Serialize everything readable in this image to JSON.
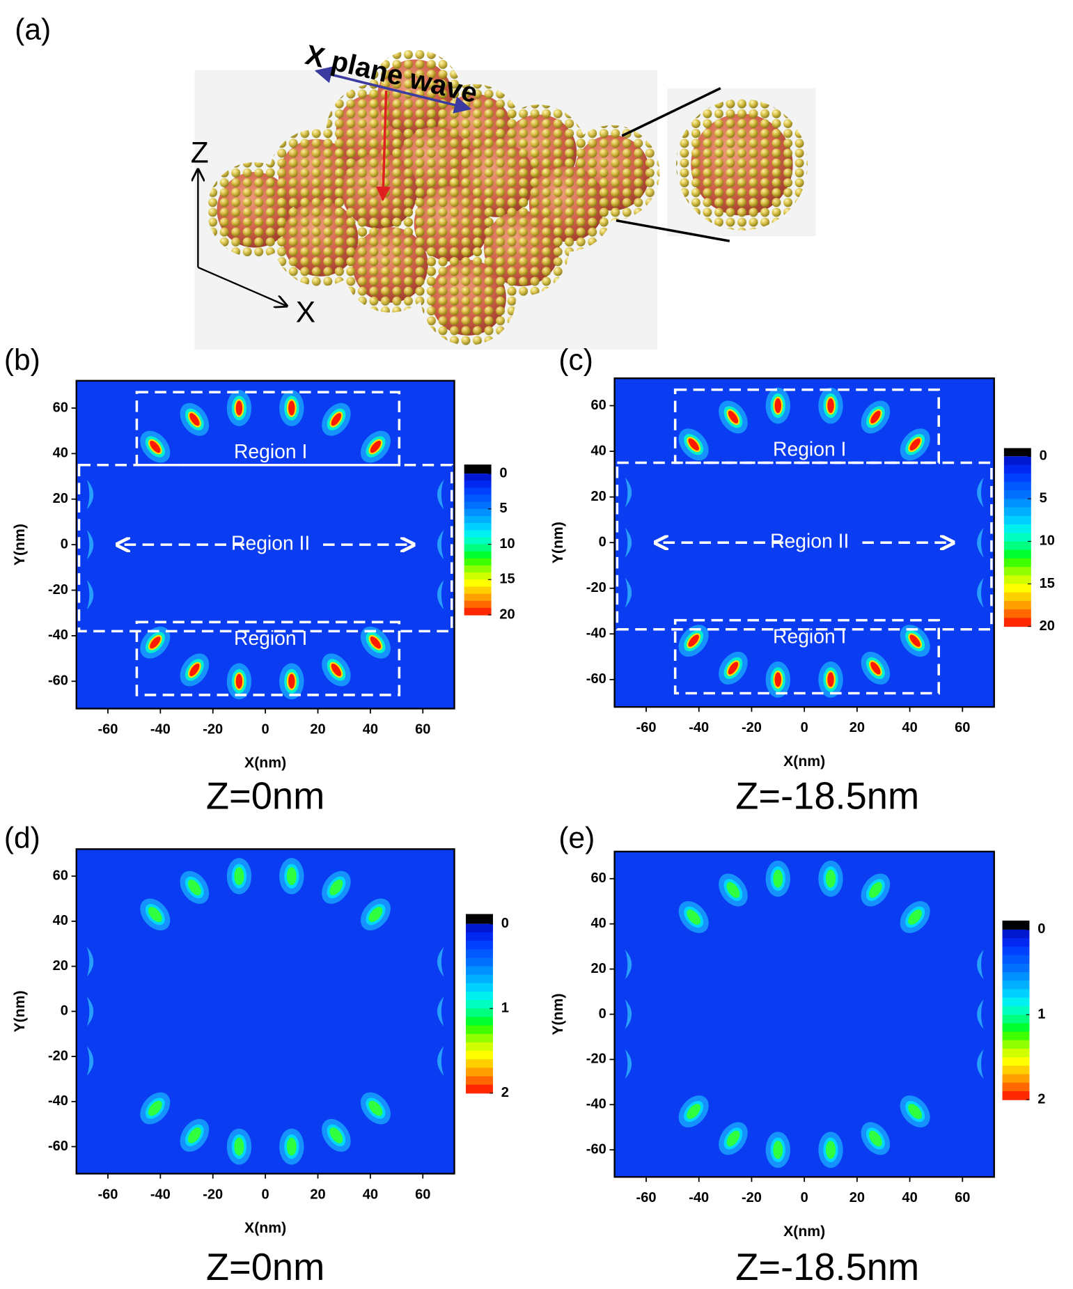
{
  "panel_a": {
    "label": "(a)",
    "wave_label": "X plane wave",
    "z_axis": "Z",
    "x_axis": "X"
  },
  "chart_data": [
    {
      "type": "heatmap",
      "panel_label": "(b)",
      "xlabel": "X(nm)",
      "ylabel": "Y(nm)",
      "caption": "Z=0nm",
      "xlim": [
        -72,
        72
      ],
      "ylim": [
        -72,
        72
      ],
      "xticks": [
        -60,
        -40,
        -20,
        0,
        20,
        40,
        60
      ],
      "yticks": [
        -60,
        -40,
        -20,
        0,
        20,
        40,
        60
      ],
      "colorbar": {
        "lim": [
          0,
          20
        ],
        "ticks": [
          0,
          5,
          10,
          15,
          20
        ]
      },
      "annotations": [
        "Region I",
        "Region II",
        "Region I"
      ]
    },
    {
      "type": "heatmap",
      "panel_label": "(c)",
      "xlabel": "X(nm)",
      "ylabel": "Y(nm)",
      "caption": "Z=-18.5nm",
      "xlim": [
        -72,
        72
      ],
      "ylim": [
        -72,
        72
      ],
      "xticks": [
        -60,
        -40,
        -20,
        0,
        20,
        40,
        60
      ],
      "yticks": [
        -60,
        -40,
        -20,
        0,
        20,
        40,
        60
      ],
      "colorbar": {
        "lim": [
          0,
          20
        ],
        "ticks": [
          0,
          5,
          10,
          15,
          20
        ]
      },
      "annotations": [
        "Region I",
        "Region II",
        "Region I"
      ]
    },
    {
      "type": "heatmap",
      "panel_label": "(d)",
      "xlabel": "X(nm)",
      "ylabel": "Y(nm)",
      "caption": "Z=0nm",
      "xlim": [
        -72,
        72
      ],
      "ylim": [
        -72,
        72
      ],
      "xticks": [
        -60,
        -40,
        -20,
        0,
        20,
        40,
        60
      ],
      "yticks": [
        -60,
        -40,
        -20,
        0,
        20,
        40,
        60
      ],
      "colorbar": {
        "lim": [
          0,
          2
        ],
        "ticks": [
          0,
          1,
          2
        ]
      }
    },
    {
      "type": "heatmap",
      "panel_label": "(e)",
      "xlabel": "X(nm)",
      "ylabel": "Y(nm)",
      "caption": "Z=-18.5nm",
      "xlim": [
        -72,
        72
      ],
      "ylim": [
        -72,
        72
      ],
      "xticks": [
        -60,
        -40,
        -20,
        0,
        20,
        40,
        60
      ],
      "yticks": [
        -60,
        -40,
        -20,
        0,
        20,
        40,
        60
      ],
      "colorbar": {
        "lim": [
          0,
          2
        ],
        "ticks": [
          0,
          1,
          2
        ]
      }
    }
  ]
}
